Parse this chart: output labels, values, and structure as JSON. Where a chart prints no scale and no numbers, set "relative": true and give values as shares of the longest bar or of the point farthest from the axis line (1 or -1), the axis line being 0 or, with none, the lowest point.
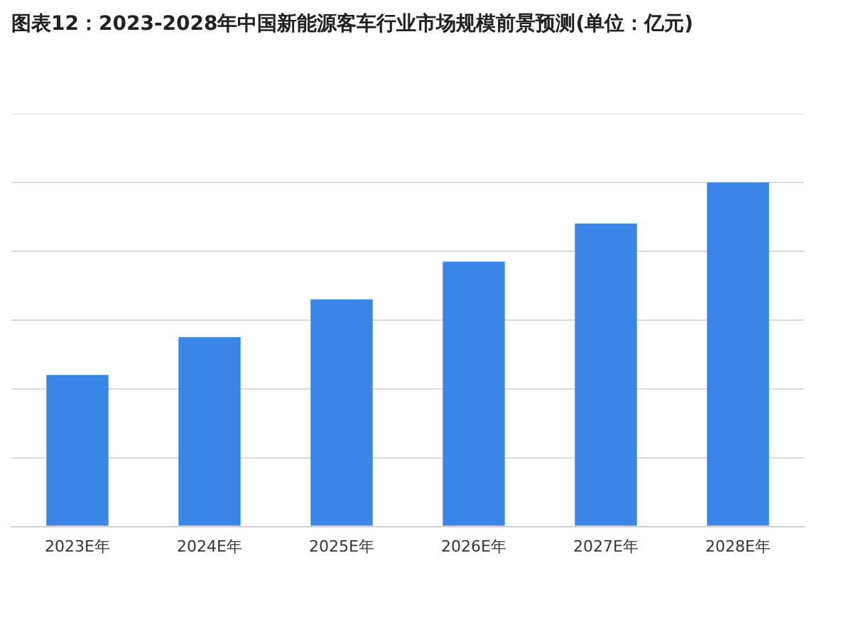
{
  "chart_data": {
    "type": "bar",
    "title": "图表12：2023-2028年中国新能源客车行业市场规模前景预测(单位：亿元)",
    "categories": [
      "2023E年",
      "2024E年",
      "2025E年",
      "2026E年",
      "2027E年",
      "2028E年"
    ],
    "values": [
      0.44,
      0.55,
      0.66,
      0.77,
      0.88,
      1
    ],
    "color": "#3a86e8",
    "relative": true,
    "grid": "y"
  }
}
